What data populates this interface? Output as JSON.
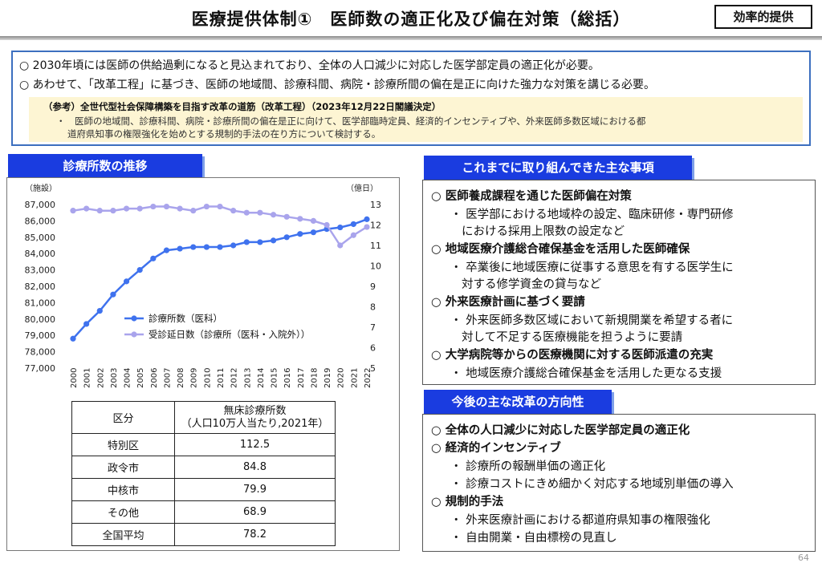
{
  "header": {
    "title": "医療提供体制①　医師数の適正化及び偏在対策（総括）",
    "tag": "効率的提供"
  },
  "summary": {
    "lines": [
      "○ 2030年頃には医師の供給過剰になると見込まれており、全体の人口減少に対応した医学部定員の適正化が必要。",
      "○ あわせて、「改革工程」に基づき、医師の地域間、診療科間、病院・診療所間の偏在是正に向けた強力な対策を講じる必要。"
    ],
    "reference": {
      "title": "（参考）全世代型社会保障構築を目指す改革の道筋（改革工程）（2023年12月22日閣議決定）",
      "body": [
        "・　医師の地域間、診療科間、病院・診療所間の偏在是正に向けて、医学部臨時定員、経済的インセンティブや、外来医師多数区域における都",
        "道府県知事の権限強化を始めとする規制的手法の在り方について検討する。"
      ]
    }
  },
  "left_section": {
    "banner": "診療所数の推移"
  },
  "chart_data": {
    "type": "line",
    "title": "診療所数の推移",
    "left_axis_label": "（施設）",
    "right_axis_label": "（億日）",
    "y_left_ticks": [
      "87,000",
      "86,000",
      "85,000",
      "84,000",
      "83,000",
      "82,000",
      "81,000",
      "80,000",
      "79,000",
      "78,000",
      "77,000"
    ],
    "y_right_ticks": [
      "13",
      "12",
      "11",
      "10",
      "9",
      "8",
      "7",
      "6",
      "5"
    ],
    "ylim_left": [
      77000,
      87000
    ],
    "ylim_right": [
      5,
      13
    ],
    "x": [
      "2000",
      "2001",
      "2002",
      "2003",
      "2004",
      "2005",
      "2006",
      "2007",
      "2008",
      "2009",
      "2010",
      "2011",
      "2012",
      "2013",
      "2014",
      "2015",
      "2016",
      "2017",
      "2018",
      "2019",
      "2020",
      "2021",
      "2022"
    ],
    "series": [
      {
        "name": "診療所数（医科）",
        "axis": "left",
        "color": "#3f72ee",
        "values": [
          78800,
          79700,
          80500,
          81500,
          82300,
          83000,
          83700,
          84200,
          84300,
          84400,
          84400,
          84400,
          84500,
          84700,
          84700,
          84800,
          85000,
          85200,
          85300,
          85500,
          85600,
          85800,
          86100
        ]
      },
      {
        "name": "受診延日数（診療所（医科・入院外））",
        "axis": "right",
        "color": "#a9a4ec",
        "values": [
          12.7,
          12.8,
          12.7,
          12.7,
          12.8,
          12.8,
          12.9,
          12.9,
          12.8,
          12.7,
          12.9,
          12.9,
          12.7,
          12.6,
          12.6,
          12.5,
          12.4,
          12.3,
          12.2,
          12.0,
          11.0,
          11.5,
          11.9
        ]
      }
    ]
  },
  "table": {
    "headers": [
      "区分",
      "無床診療所数\n（人口10万人当たり,2021年）"
    ],
    "rows": [
      {
        "label": "特別区",
        "value": "112.5"
      },
      {
        "label": "政令市",
        "value": "84.8"
      },
      {
        "label": "中核市",
        "value": "79.9"
      },
      {
        "label": "その他",
        "value": "68.9"
      }
    ],
    "average": {
      "label": "全国平均",
      "value": "78.2"
    }
  },
  "right_top": {
    "banner": "これまでに取り組んできた主な事項",
    "items": [
      {
        "heading": "○ 医師養成課程を通じた医師偏在対策",
        "bullets": [
          "・ 医学部における地域枠の設定、臨床研修・専門研修",
          "における採用上限数の設定など"
        ]
      },
      {
        "heading": "○ 地域医療介護総合確保基金を活用した医師確保",
        "bullets": [
          "・ 卒業後に地域医療に従事する意思を有する医学生に",
          "対する修学資金の貸与など"
        ]
      },
      {
        "heading": "○ 外来医療計画に基づく要請",
        "bullets": [
          "・ 外来医師多数区域において新規開業を希望する者に",
          "対して不足する医療機能を担うように要請"
        ]
      },
      {
        "heading": "○ 大学病院等からの医療機関に対する医師派遣の充実",
        "bullets": [
          "・ 地域医療介護総合確保基金を活用した更なる支援"
        ]
      }
    ]
  },
  "right_bottom": {
    "banner": "今後の主な改革の方向性",
    "items": [
      {
        "heading": "○ 全体の人口減少に対応した医学部定員の適正化",
        "bullets": []
      },
      {
        "heading": "○ 経済的インセンティブ",
        "bullets": [
          "・ 診療所の報酬単価の適正化",
          "・ 診療コストにきめ細かく対応する地域別単価の導入"
        ]
      },
      {
        "heading": "○ 規制的手法",
        "bullets": [
          "・ 外来医療計画における都道府県知事の権限強化",
          "・ 自由開業・自由標榜の見直し"
        ]
      }
    ]
  },
  "page_number": "64"
}
